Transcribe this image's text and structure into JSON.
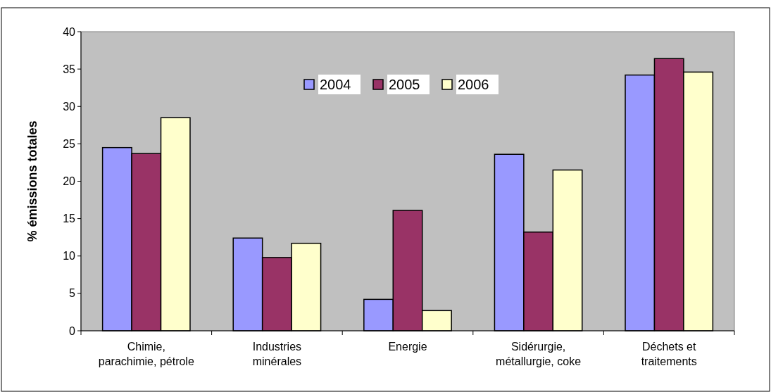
{
  "chart_data": {
    "type": "bar",
    "ylabel": "% émissions totales",
    "categories": [
      "Chimie,\nparachimie, pétrole",
      "Industries\nminérales",
      "Energie",
      "Sidérurgie,\nmétallurgie, coke",
      "Déchets et\ntraitements"
    ],
    "series": [
      {
        "name": "2004",
        "color": "#9999ff",
        "values": [
          24.5,
          12.4,
          4.2,
          23.6,
          34.2
        ]
      },
      {
        "name": "2005",
        "color": "#993366",
        "values": [
          23.7,
          9.8,
          16.1,
          13.2,
          36.4
        ]
      },
      {
        "name": "2006",
        "color": "#ffffcc",
        "values": [
          28.5,
          11.7,
          2.7,
          21.5,
          34.6
        ]
      }
    ],
    "ylim": [
      0,
      40
    ],
    "yticks": [
      0,
      5,
      10,
      15,
      20,
      25,
      30,
      35,
      40
    ],
    "grid": false,
    "legend": "top"
  }
}
